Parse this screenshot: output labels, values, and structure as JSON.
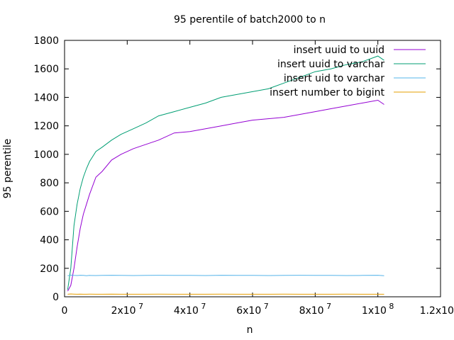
{
  "chart_data": {
    "type": "line",
    "title": "95 perentile of batch2000 to n",
    "xlabel": "n",
    "ylabel": "95 perentile",
    "xlim": [
      0,
      120000000
    ],
    "ylim": [
      0,
      1800
    ],
    "grid": false,
    "legend_position": "top-right",
    "x_ticks": [
      0,
      20000000,
      40000000,
      60000000,
      80000000,
      100000000,
      120000000
    ],
    "x_tick_labels": [
      {
        "base": "0",
        "exp": ""
      },
      {
        "base": "2x10",
        "exp": "7"
      },
      {
        "base": "4x10",
        "exp": "7"
      },
      {
        "base": "6x10",
        "exp": "7"
      },
      {
        "base": "8x10",
        "exp": "7"
      },
      {
        "base": "1x10",
        "exp": "8"
      },
      {
        "base": "1.2x10",
        "exp": "8"
      }
    ],
    "y_ticks": [
      0,
      200,
      400,
      600,
      800,
      1000,
      1200,
      1400,
      1600,
      1800
    ],
    "y_tick_labels": [
      "0",
      "200",
      "400",
      "600",
      "800",
      "1000",
      "1200",
      "1400",
      "1600",
      "1800"
    ],
    "x": [
      1000000,
      2000000,
      3000000,
      4000000,
      5000000,
      6000000,
      7000000,
      8000000,
      10000000,
      12000000,
      15000000,
      18000000,
      22000000,
      26000000,
      30000000,
      35000000,
      40000000,
      45000000,
      50000000,
      55000000,
      60000000,
      65000000,
      70000000,
      75000000,
      80000000,
      85000000,
      90000000,
      95000000,
      100000000,
      102000000
    ],
    "series": [
      {
        "name": "insert uuid to uuid",
        "color": "#9400d3",
        "values": [
          40,
          80,
          200,
          350,
          480,
          580,
          650,
          720,
          840,
          880,
          960,
          1000,
          1040,
          1070,
          1100,
          1150,
          1160,
          1180,
          1200,
          1220,
          1240,
          1250,
          1260,
          1280,
          1300,
          1320,
          1340,
          1360,
          1380,
          1350
        ]
      },
      {
        "name": "insert uuid to varchar",
        "color": "#009e73",
        "values": [
          50,
          200,
          500,
          650,
          760,
          840,
          900,
          950,
          1020,
          1050,
          1100,
          1140,
          1180,
          1220,
          1270,
          1300,
          1330,
          1360,
          1400,
          1420,
          1440,
          1460,
          1500,
          1540,
          1580,
          1600,
          1630,
          1650,
          1690,
          1660
        ]
      },
      {
        "name": "insert uid to varchar",
        "color": "#56b4e9",
        "values": [
          148,
          152,
          150,
          149,
          151,
          150,
          148,
          150,
          149,
          150,
          151,
          150,
          149,
          150,
          151,
          150,
          150,
          149,
          151,
          150,
          150,
          149,
          150,
          151,
          150,
          150,
          149,
          150,
          151,
          148
        ]
      },
      {
        "name": "insert number to bigint",
        "color": "#e69f00",
        "values": [
          18,
          20,
          19,
          18,
          19,
          18,
          18,
          19,
          18,
          18,
          19,
          18,
          18,
          18,
          19,
          18,
          18,
          18,
          19,
          18,
          18,
          18,
          19,
          18,
          18,
          18,
          19,
          18,
          18,
          18
        ]
      }
    ]
  }
}
